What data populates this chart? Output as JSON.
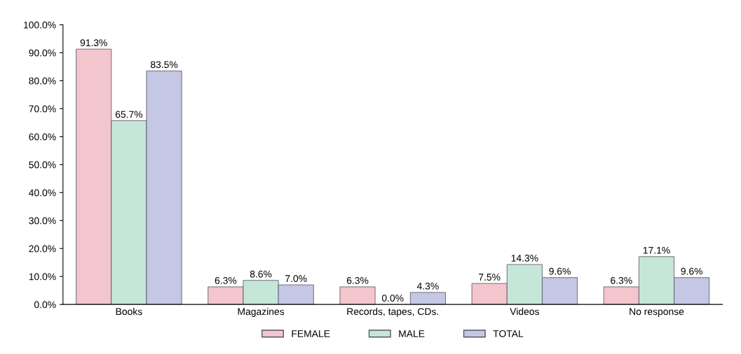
{
  "chart_data": {
    "type": "bar",
    "categories": [
      "Books",
      "Magazines",
      "Records, tapes, CDs.",
      "Videos",
      "No response"
    ],
    "series": [
      {
        "name": "FEMALE",
        "color": "#f2c6cc",
        "values": [
          91.3,
          6.3,
          6.3,
          7.5,
          6.3
        ],
        "value_labels": [
          "91.3%",
          "6.3%",
          "6.3%",
          "7.5%",
          "6.3%"
        ]
      },
      {
        "name": "MALE",
        "color": "#c6e6d8",
        "values": [
          65.7,
          8.6,
          0.0,
          14.3,
          17.1
        ],
        "value_labels": [
          "65.7%",
          "8.6%",
          "0.0%",
          "14.3%",
          "17.1%"
        ]
      },
      {
        "name": "TOTAL",
        "color": "#c4c8e4",
        "values": [
          83.5,
          7.0,
          4.3,
          9.6,
          9.6
        ],
        "value_labels": [
          "83.5%",
          "7.0%",
          "4.3%",
          "9.6%",
          "9.6%"
        ]
      }
    ],
    "ylim": [
      0,
      100
    ],
    "yticks": [
      {
        "value": 0,
        "label": "0.0%"
      },
      {
        "value": 10,
        "label": "10.0%"
      },
      {
        "value": 20,
        "label": "20.0%"
      },
      {
        "value": 30,
        "label": "30.0%"
      },
      {
        "value": 40,
        "label": "40.0%"
      },
      {
        "value": 50,
        "label": "50.0%"
      },
      {
        "value": 60,
        "label": "60.0%"
      },
      {
        "value": 70,
        "label": "70.0%"
      },
      {
        "value": 80,
        "label": "80.0%"
      },
      {
        "value": 90,
        "label": "90.0%"
      },
      {
        "value": 100,
        "label": "100.0%"
      }
    ],
    "grid": false,
    "legend": "bottom"
  }
}
